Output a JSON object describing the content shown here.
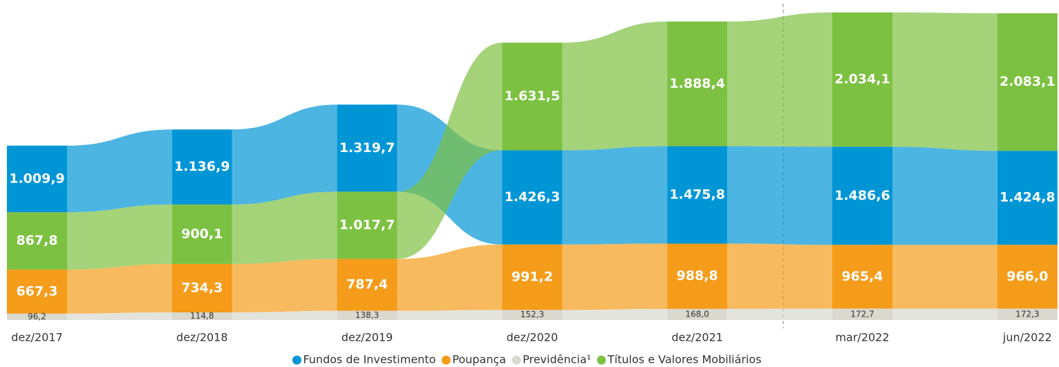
{
  "chart_data": {
    "type": "ribbon",
    "categories": [
      "dez/2017",
      "dez/2018",
      "dez/2019",
      "dez/2020",
      "dez/2021",
      "mar/2022",
      "jun/2022"
    ],
    "series": [
      {
        "name": "Fundos de Investimento",
        "color": "#0096d6",
        "values": [
          1009.9,
          1136.9,
          1319.7,
          1426.3,
          1475.8,
          1486.6,
          1424.8
        ],
        "value_labels": [
          "1.009,9",
          "1.136,9",
          "1.319,7",
          "1.426,3",
          "1.475,8",
          "1.486,6",
          "1.424,8"
        ]
      },
      {
        "name": "Poupança",
        "color": "#f59c1a",
        "values": [
          667.3,
          734.3,
          787.4,
          991.2,
          988.8,
          965.4,
          966.0
        ],
        "value_labels": [
          "667,3",
          "734,3",
          "787,4",
          "991,2",
          "988,8",
          "965,4",
          "966,0"
        ]
      },
      {
        "name": "Previdência¹",
        "color": "#d9d9d0",
        "values": [
          96.2,
          114.8,
          138.3,
          152.3,
          168.0,
          172.7,
          172.3
        ],
        "value_labels": [
          "96,2",
          "114,8",
          "138,3",
          "152,3",
          "168,0",
          "172,7",
          "172,3"
        ]
      },
      {
        "name": "Títulos e Valores Mobiliários",
        "color": "#7dc142",
        "values": [
          867.8,
          900.1,
          1017.7,
          1631.5,
          1888.4,
          2034.1,
          2083.1
        ],
        "value_labels": [
          "867,8",
          "900,1",
          "1.017,7",
          "1.631,5",
          "1.888,4",
          "2.034,1",
          "2.083,1"
        ]
      }
    ]
  }
}
